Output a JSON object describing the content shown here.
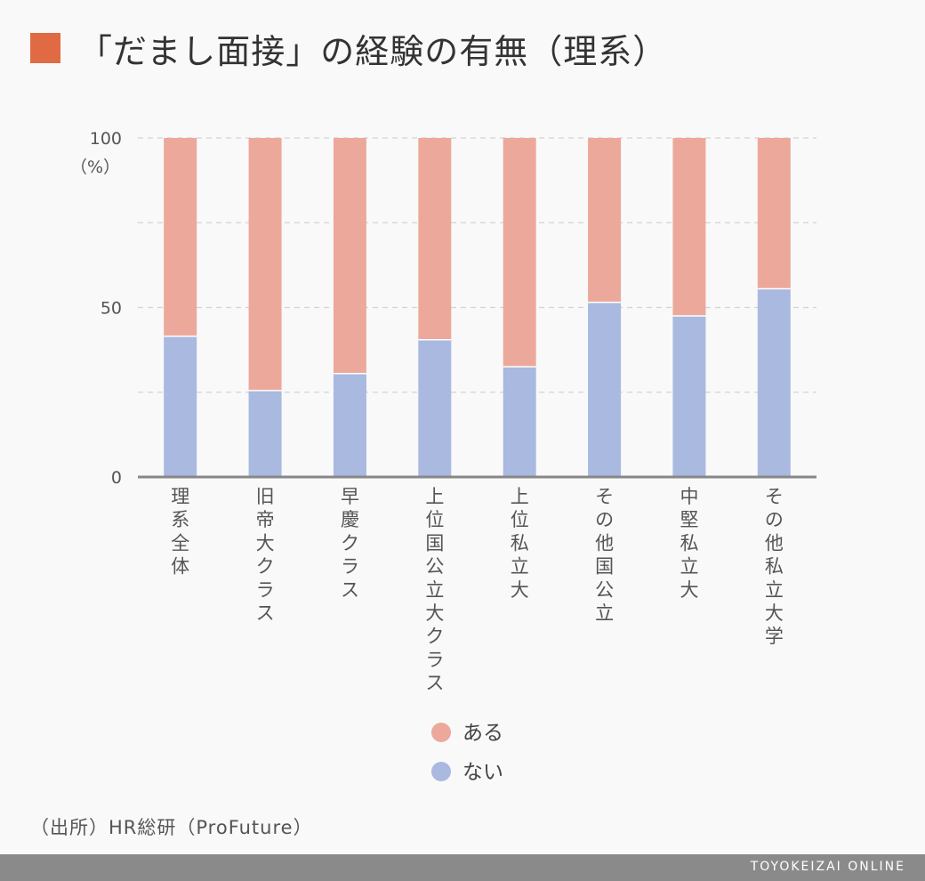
{
  "title": "「だまし面接」の経験の有無（理系）",
  "colors": {
    "title_marker": "#e06a44",
    "aru": "#eca99b",
    "nai": "#a9b9e0",
    "axis": "#888888",
    "grid": "#d4d4d4"
  },
  "chart_data": {
    "type": "bar",
    "stacked": true,
    "categories": [
      "理系全体",
      "旧帝大クラス",
      "早慶クラス",
      "上位国公立大クラス",
      "上位私立大",
      "その他国公立",
      "中堅私立大",
      "その他私立大学"
    ],
    "series": [
      {
        "name": "ない",
        "values": [
          41.5,
          25.5,
          30.5,
          40.5,
          32.5,
          51.5,
          47.5,
          55.5
        ]
      },
      {
        "name": "ある",
        "values": [
          58.5,
          74.5,
          69.5,
          59.5,
          67.5,
          48.5,
          52.5,
          44.5
        ]
      }
    ],
    "ylim": [
      0,
      100
    ],
    "yticks": [
      0,
      50,
      100
    ],
    "yunit": "（%）",
    "grid": true,
    "legend": [
      {
        "label": "ある",
        "color": "#eca99b"
      },
      {
        "label": "ない",
        "color": "#a9b9e0"
      }
    ],
    "legend_position": "bottom"
  },
  "source": "（出所）HR総研（ProFuture）",
  "brand": "TOYOKEIZAI ONLINE"
}
